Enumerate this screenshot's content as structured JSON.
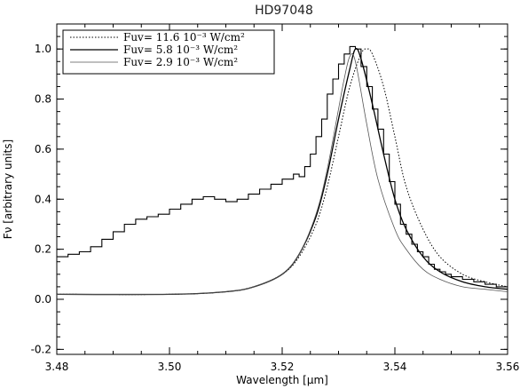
{
  "chart_data": {
    "type": "line",
    "title": "HD97048",
    "xlabel": "Wavelength [µm]",
    "ylabel": "Fν [arbitrary units]",
    "xlim": [
      3.48,
      3.56
    ],
    "ylim": [
      -0.22,
      1.1
    ],
    "xticks": [
      "3.48",
      "3.50",
      "3.52",
      "3.54",
      "3.56"
    ],
    "xtick_values": [
      3.48,
      3.5,
      3.52,
      3.54,
      3.56
    ],
    "yticks": [
      "-0.2",
      "0.0",
      "0.2",
      "0.4",
      "0.6",
      "0.8",
      "1.0"
    ],
    "ytick_values": [
      -0.2,
      0.0,
      0.2,
      0.4,
      0.6,
      0.8,
      1.0
    ],
    "legend_position": "top-left",
    "legend": [
      {
        "label": "Fuv= 11.6 10⁻³ W/cm²",
        "style": "dotted"
      },
      {
        "label": "Fuv= 5.8 10⁻³ W/cm²",
        "style": "solid"
      },
      {
        "label": "Fuv= 2.9 10⁻³ W/cm²",
        "style": "thin"
      }
    ],
    "series": [
      {
        "style": "histogram",
        "x": [
          3.48,
          3.482,
          3.484,
          3.486,
          3.488,
          3.49,
          3.492,
          3.494,
          3.496,
          3.498,
          3.5,
          3.502,
          3.504,
          3.506,
          3.508,
          3.51,
          3.512,
          3.514,
          3.516,
          3.518,
          3.52,
          3.522,
          3.523,
          3.524,
          3.525,
          3.526,
          3.527,
          3.528,
          3.529,
          3.53,
          3.531,
          3.532,
          3.533,
          3.534,
          3.535,
          3.536,
          3.537,
          3.538,
          3.539,
          3.54,
          3.541,
          3.542,
          3.543,
          3.544,
          3.545,
          3.546,
          3.547,
          3.548,
          3.549,
          3.55,
          3.552,
          3.554,
          3.556,
          3.558
        ],
        "values": [
          0.17,
          0.18,
          0.19,
          0.21,
          0.24,
          0.27,
          0.3,
          0.32,
          0.33,
          0.34,
          0.36,
          0.38,
          0.4,
          0.41,
          0.4,
          0.39,
          0.4,
          0.42,
          0.44,
          0.46,
          0.48,
          0.5,
          0.49,
          0.53,
          0.58,
          0.65,
          0.72,
          0.82,
          0.88,
          0.94,
          0.98,
          1.01,
          1.0,
          0.93,
          0.85,
          0.76,
          0.68,
          0.58,
          0.47,
          0.38,
          0.3,
          0.26,
          0.22,
          0.19,
          0.17,
          0.14,
          0.12,
          0.11,
          0.1,
          0.09,
          0.08,
          0.07,
          0.06,
          0.05
        ]
      },
      {
        "style": "dotted",
        "x": [
          3.48,
          3.5,
          3.51,
          3.515,
          3.52,
          3.523,
          3.526,
          3.528,
          3.53,
          3.532,
          3.534,
          3.535,
          3.536,
          3.538,
          3.54,
          3.542,
          3.545,
          3.548,
          3.552,
          3.556,
          3.56
        ],
        "values": [
          0.02,
          0.02,
          0.03,
          0.05,
          0.1,
          0.17,
          0.3,
          0.45,
          0.65,
          0.85,
          0.98,
          1.0,
          0.98,
          0.85,
          0.65,
          0.45,
          0.28,
          0.17,
          0.1,
          0.07,
          0.05
        ]
      },
      {
        "style": "solid",
        "x": [
          3.48,
          3.5,
          3.51,
          3.515,
          3.52,
          3.523,
          3.526,
          3.528,
          3.53,
          3.532,
          3.533,
          3.534,
          3.536,
          3.538,
          3.54,
          3.542,
          3.545,
          3.548,
          3.552,
          3.556,
          3.56
        ],
        "values": [
          0.02,
          0.02,
          0.03,
          0.05,
          0.1,
          0.18,
          0.33,
          0.5,
          0.72,
          0.92,
          1.0,
          0.96,
          0.78,
          0.58,
          0.4,
          0.28,
          0.17,
          0.11,
          0.07,
          0.05,
          0.04
        ]
      },
      {
        "style": "thin",
        "x": [
          3.48,
          3.5,
          3.51,
          3.515,
          3.52,
          3.523,
          3.526,
          3.528,
          3.53,
          3.531,
          3.532,
          3.533,
          3.535,
          3.537,
          3.54,
          3.542,
          3.545,
          3.548,
          3.552,
          3.556,
          3.56
        ],
        "values": [
          0.02,
          0.02,
          0.03,
          0.05,
          0.1,
          0.18,
          0.34,
          0.52,
          0.76,
          0.88,
          0.97,
          0.95,
          0.7,
          0.48,
          0.28,
          0.2,
          0.12,
          0.08,
          0.05,
          0.04,
          0.03
        ]
      }
    ]
  }
}
